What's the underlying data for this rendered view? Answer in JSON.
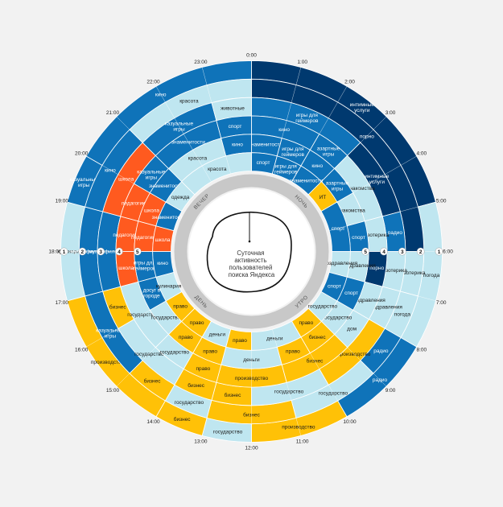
{
  "colors": {
    "light": "#bfe6f0",
    "mid": "#0f73b9",
    "dark": "#00396f",
    "yellow": "#ffc107",
    "orange": "#ff5a1f",
    "background": "#f2f2f2"
  },
  "chart_data": {
    "type": "radial-heatmap",
    "title": "Суточная активность пользователей поиска Яндекса",
    "title_lines": [
      "Суточная",
      "активность",
      "пользователей",
      "поиска Яндекса"
    ],
    "hours": [
      "0:00",
      "1:00",
      "2:00",
      "3:00",
      "4:00",
      "5:00",
      "6:00",
      "7:00",
      "8:00",
      "9:00",
      "10:00",
      "11:00",
      "12:00",
      "13:00",
      "14:00",
      "15:00",
      "16:00",
      "17:00",
      "18:00",
      "19:00",
      "20:00",
      "21:00",
      "22:00",
      "23:00"
    ],
    "periods": [
      {
        "label": "НОЧЬ",
        "start": 0,
        "end": 6
      },
      {
        "label": "УТРО",
        "start": 6,
        "end": 12
      },
      {
        "label": "ДЕНЬ",
        "start": 12,
        "end": 18
      },
      {
        "label": "ВЕЧЕР",
        "start": 18,
        "end": 24
      }
    ],
    "rank_markers": [
      {
        "hour": 6,
        "ranks": [
          "1",
          "2",
          "3",
          "4",
          "5"
        ]
      },
      {
        "hour": 18,
        "ranks": [
          "1",
          "2",
          "3",
          "4",
          "5"
        ]
      }
    ],
    "rings": [
      {
        "rank": 1,
        "segments": [
          {
            "start": 0,
            "end": 5,
            "label": "интимные услуги",
            "color": "dark"
          },
          {
            "start": 5,
            "end": 8,
            "label": "погода",
            "color": "light"
          },
          {
            "start": 8,
            "end": 10,
            "label": "радио",
            "color": "mid"
          },
          {
            "start": 10,
            "end": 12,
            "label": "производство",
            "color": "yellow"
          },
          {
            "start": 12,
            "end": 13,
            "label": "государство",
            "color": "light"
          },
          {
            "start": 13,
            "end": 14,
            "label": "бизнес",
            "color": "yellow"
          },
          {
            "start": 14,
            "end": 17,
            "label": "производство",
            "color": "yellow"
          },
          {
            "start": 17,
            "end": 19,
            "label": "кулинария",
            "color": "light"
          },
          {
            "start": 19,
            "end": 20,
            "label": "казуальные игры",
            "color": "mid"
          },
          {
            "start": 20,
            "end": 24,
            "label": "кино",
            "color": "mid"
          }
        ]
      },
      {
        "rank": 2,
        "segments": [
          {
            "start": 0,
            "end": 6,
            "label": "порно",
            "color": "dark"
          },
          {
            "start": 6,
            "end": 7,
            "label": "эзотерика",
            "color": "light"
          },
          {
            "start": 7,
            "end": 8,
            "label": "погода",
            "color": "light"
          },
          {
            "start": 8,
            "end": 9,
            "label": "радио",
            "color": "mid"
          },
          {
            "start": 9,
            "end": 11,
            "label": "государство",
            "color": "light"
          },
          {
            "start": 11,
            "end": 13,
            "label": "бизнес",
            "color": "yellow"
          },
          {
            "start": 13,
            "end": 14,
            "label": "государство",
            "color": "light"
          },
          {
            "start": 14,
            "end": 15,
            "label": "бизнес",
            "color": "yellow"
          },
          {
            "start": 15,
            "end": 17,
            "label": "казуальные игры",
            "color": "mid"
          },
          {
            "start": 17,
            "end": 19,
            "label": "мульт-фильмы",
            "color": "mid"
          },
          {
            "start": 19,
            "end": 21,
            "label": "кино",
            "color": "mid"
          },
          {
            "start": 21,
            "end": 24,
            "label": "красота",
            "color": "light"
          }
        ]
      },
      {
        "rank": 3,
        "segments": [
          {
            "start": 0,
            "end": 3,
            "label": "игры для геймеров",
            "color": "mid"
          },
          {
            "start": 3,
            "end": 5,
            "label": "интимные услуги",
            "color": "dark"
          },
          {
            "start": 5,
            "end": 6,
            "label": "радио",
            "color": "mid"
          },
          {
            "start": 6,
            "end": 7,
            "label": "эзотерика",
            "color": "light"
          },
          {
            "start": 7,
            "end": 8,
            "label": "поздравления",
            "color": "light"
          },
          {
            "start": 8,
            "end": 10,
            "label": "производство",
            "color": "yellow"
          },
          {
            "start": 10,
            "end": 12,
            "label": "государство",
            "color": "light"
          },
          {
            "start": 12,
            "end": 13,
            "label": "бизнес",
            "color": "yellow"
          },
          {
            "start": 13,
            "end": 14,
            "label": "бизнес",
            "color": "yellow"
          },
          {
            "start": 14,
            "end": 16,
            "label": "государство",
            "color": "light"
          },
          {
            "start": 16,
            "end": 17,
            "label": "бизнес",
            "color": "yellow"
          },
          {
            "start": 17,
            "end": 19,
            "label": "мульт-фильмы",
            "color": "mid"
          },
          {
            "start": 19,
            "end": 21,
            "label": "школа",
            "color": "orange"
          },
          {
            "start": 21,
            "end": 23,
            "label": "казуальные игры",
            "color": "mid"
          },
          {
            "start": 23,
            "end": 24,
            "label": "животные",
            "color": "light"
          }
        ]
      },
      {
        "rank": 4,
        "segments": [
          {
            "start": 0,
            "end": 2,
            "label": "кино",
            "color": "mid"
          },
          {
            "start": 2,
            "end": 3,
            "label": "азартные игры",
            "color": "mid"
          },
          {
            "start": 3,
            "end": 5,
            "label": "знакомства",
            "color": "light"
          },
          {
            "start": 5,
            "end": 6,
            "label": "эзотерика",
            "color": "light"
          },
          {
            "start": 6,
            "end": 7,
            "label": "порно",
            "color": "dark"
          },
          {
            "start": 7,
            "end": 8,
            "label": "поздравления",
            "color": "light"
          },
          {
            "start": 8,
            "end": 9,
            "label": "дом",
            "color": "light"
          },
          {
            "start": 9,
            "end": 11,
            "label": "бизнес",
            "color": "yellow"
          },
          {
            "start": 11,
            "end": 13,
            "label": "производство",
            "color": "yellow"
          },
          {
            "start": 13,
            "end": 14,
            "label": "право",
            "color": "yellow"
          },
          {
            "start": 14,
            "end": 15,
            "label": "государство",
            "color": "light"
          },
          {
            "start": 15,
            "end": 17,
            "label": "государство",
            "color": "light"
          },
          {
            "start": 17,
            "end": 18,
            "label": "школа",
            "color": "orange"
          },
          {
            "start": 18,
            "end": 19,
            "label": "педагогика",
            "color": "orange"
          },
          {
            "start": 19,
            "end": 20,
            "label": "педагогика",
            "color": "orange"
          },
          {
            "start": 20,
            "end": 21,
            "label": "казуальные игры",
            "color": "mid"
          },
          {
            "start": 21,
            "end": 23,
            "label": "знаменитости",
            "color": "mid"
          },
          {
            "start": 23,
            "end": 24,
            "label": "спорт",
            "color": "mid"
          }
        ]
      },
      {
        "rank": 5,
        "segments": [
          {
            "start": 0,
            "end": 1,
            "label": "знаменитости",
            "color": "mid"
          },
          {
            "start": 1,
            "end": 2,
            "label": "игры для геймеров",
            "color": "mid"
          },
          {
            "start": 2,
            "end": 3,
            "label": "кино",
            "color": "mid"
          },
          {
            "start": 3,
            "end": 4,
            "label": "азартные игры",
            "color": "mid"
          },
          {
            "start": 4,
            "end": 5,
            "label": "знакомства",
            "color": "light"
          },
          {
            "start": 5,
            "end": 6,
            "label": "спорт",
            "color": "mid"
          },
          {
            "start": 6,
            "end": 7,
            "label": "поздравления",
            "color": "light"
          },
          {
            "start": 7,
            "end": 8,
            "label": "спорт",
            "color": "mid"
          },
          {
            "start": 8,
            "end": 9,
            "label": "государство",
            "color": "light"
          },
          {
            "start": 9,
            "end": 10,
            "label": "бизнес",
            "color": "yellow"
          },
          {
            "start": 10,
            "end": 11,
            "label": "право",
            "color": "yellow"
          },
          {
            "start": 11,
            "end": 13,
            "label": "деньги",
            "color": "light"
          },
          {
            "start": 13,
            "end": 14,
            "label": "право",
            "color": "yellow"
          },
          {
            "start": 14,
            "end": 15,
            "label": "право",
            "color": "yellow"
          },
          {
            "start": 15,
            "end": 16,
            "label": "государство",
            "color": "light"
          },
          {
            "start": 16,
            "end": 17,
            "label": "досуг в городе",
            "color": "mid"
          },
          {
            "start": 17,
            "end": 18,
            "label": "игры для геймеров",
            "color": "mid"
          },
          {
            "start": 18,
            "end": 19,
            "label": "педагогика",
            "color": "orange"
          },
          {
            "start": 19,
            "end": 20,
            "label": "школа",
            "color": "orange"
          },
          {
            "start": 20,
            "end": 21,
            "label": "знаменитости",
            "color": "mid"
          },
          {
            "start": 21,
            "end": 23,
            "label": "красота",
            "color": "light"
          },
          {
            "start": 23,
            "end": 24,
            "label": "кино",
            "color": "mid"
          }
        ]
      },
      {
        "rank": 6,
        "segments": [
          {
            "start": 0,
            "end": 1,
            "label": "спорт",
            "color": "mid"
          },
          {
            "start": 1,
            "end": 2,
            "label": "игры для геймеров",
            "color": "mid"
          },
          {
            "start": 2,
            "end": 3,
            "label": "знаменитости",
            "color": "mid"
          },
          {
            "start": 3,
            "end": 4,
            "label": "ИТ",
            "color": "yellow"
          },
          {
            "start": 4,
            "end": 6,
            "label": "спорт",
            "color": "mid"
          },
          {
            "start": 6,
            "end": 7,
            "label": "поздравления",
            "color": "light"
          },
          {
            "start": 7,
            "end": 8,
            "label": "спорт",
            "color": "mid"
          },
          {
            "start": 8,
            "end": 9,
            "label": "государство",
            "color": "light"
          },
          {
            "start": 9,
            "end": 10,
            "label": "право",
            "color": "yellow"
          },
          {
            "start": 10,
            "end": 12,
            "label": "деньги",
            "color": "light"
          },
          {
            "start": 12,
            "end": 13,
            "label": "право",
            "color": "yellow"
          },
          {
            "start": 13,
            "end": 14,
            "label": "деньги",
            "color": "light"
          },
          {
            "start": 14,
            "end": 15,
            "label": "право",
            "color": "yellow"
          },
          {
            "start": 15,
            "end": 16,
            "label": "право",
            "color": "yellow"
          },
          {
            "start": 16,
            "end": 17,
            "label": "кулинария",
            "color": "light"
          },
          {
            "start": 17,
            "end": 18,
            "label": "кино",
            "color": "mid"
          },
          {
            "start": 18,
            "end": 19,
            "label": "школа",
            "color": "orange"
          },
          {
            "start": 19,
            "end": 20,
            "label": "знаменитости",
            "color": "mid"
          },
          {
            "start": 20,
            "end": 21,
            "label": "одежда",
            "color": "light"
          },
          {
            "start": 21,
            "end": 24,
            "label": "красота",
            "color": "light"
          }
        ]
      }
    ]
  }
}
